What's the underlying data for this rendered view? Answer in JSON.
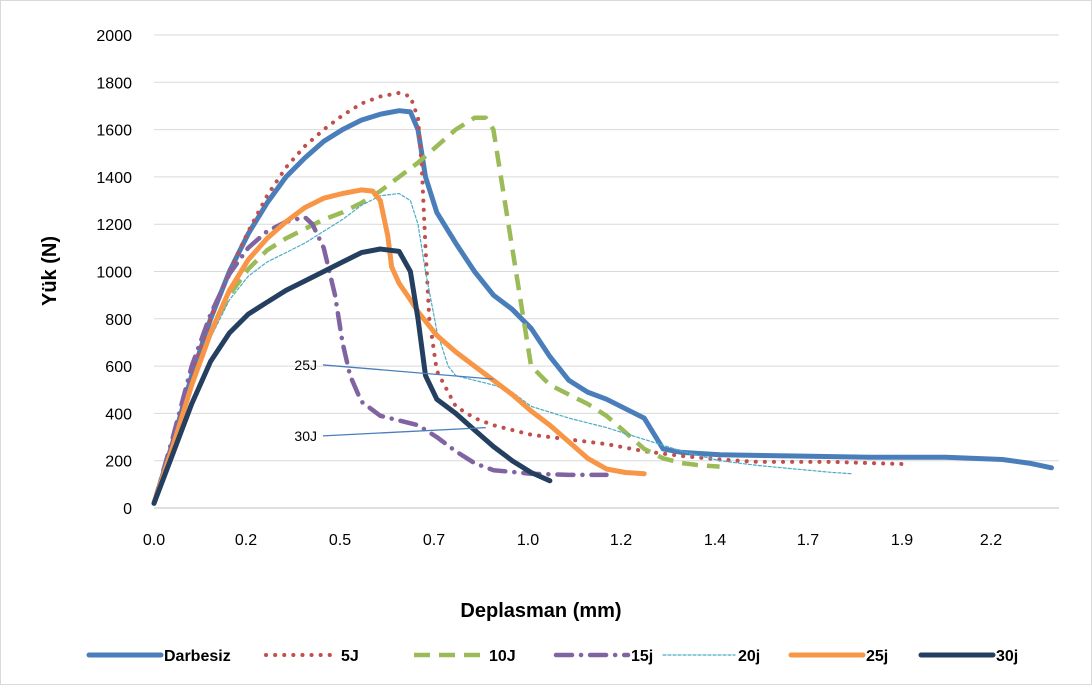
{
  "chart_data": {
    "type": "line",
    "title": "",
    "xlabel": "Deplasman (mm)",
    "ylabel": "Yük (N)",
    "xlim": [
      0,
      2.4
    ],
    "ylim": [
      0,
      2000
    ],
    "x_ticks": [
      "0.0",
      "0.2",
      "0.5",
      "0.7",
      "1.0",
      "1.2",
      "1.4",
      "1.7",
      "1.9",
      "2.2"
    ],
    "y_ticks": [
      0,
      200,
      400,
      600,
      800,
      1000,
      1200,
      1400,
      1600,
      1800,
      2000
    ],
    "grid": true,
    "legend_position": "bottom",
    "series": [
      {
        "name": "Darbesiz",
        "color": "#4a7ebb",
        "style": "solid",
        "points": [
          [
            0,
            20
          ],
          [
            0.05,
            280
          ],
          [
            0.1,
            560
          ],
          [
            0.15,
            800
          ],
          [
            0.2,
            1000
          ],
          [
            0.25,
            1160
          ],
          [
            0.3,
            1290
          ],
          [
            0.35,
            1400
          ],
          [
            0.4,
            1480
          ],
          [
            0.45,
            1550
          ],
          [
            0.5,
            1600
          ],
          [
            0.55,
            1640
          ],
          [
            0.6,
            1665
          ],
          [
            0.65,
            1680
          ],
          [
            0.68,
            1675
          ],
          [
            0.7,
            1600
          ],
          [
            0.72,
            1400
          ],
          [
            0.75,
            1250
          ],
          [
            0.8,
            1120
          ],
          [
            0.85,
            1000
          ],
          [
            0.9,
            900
          ],
          [
            0.95,
            840
          ],
          [
            1.0,
            760
          ],
          [
            1.05,
            640
          ],
          [
            1.1,
            540
          ],
          [
            1.15,
            490
          ],
          [
            1.2,
            460
          ],
          [
            1.25,
            420
          ],
          [
            1.3,
            380
          ],
          [
            1.35,
            250
          ],
          [
            1.4,
            235
          ],
          [
            1.5,
            225
          ],
          [
            1.7,
            220
          ],
          [
            1.9,
            215
          ],
          [
            2.1,
            215
          ],
          [
            2.25,
            205
          ],
          [
            2.32,
            190
          ],
          [
            2.38,
            170
          ]
        ]
      },
      {
        "name": "5J",
        "color": "#c0504d",
        "style": "dotted",
        "points": [
          [
            0,
            20
          ],
          [
            0.05,
            280
          ],
          [
            0.1,
            560
          ],
          [
            0.15,
            800
          ],
          [
            0.2,
            1000
          ],
          [
            0.25,
            1170
          ],
          [
            0.3,
            1320
          ],
          [
            0.35,
            1440
          ],
          [
            0.4,
            1530
          ],
          [
            0.45,
            1600
          ],
          [
            0.5,
            1660
          ],
          [
            0.55,
            1710
          ],
          [
            0.6,
            1740
          ],
          [
            0.65,
            1755
          ],
          [
            0.68,
            1740
          ],
          [
            0.7,
            1650
          ],
          [
            0.71,
            1450
          ],
          [
            0.72,
            1100
          ],
          [
            0.73,
            800
          ],
          [
            0.75,
            580
          ],
          [
            0.8,
            430
          ],
          [
            0.85,
            380
          ],
          [
            0.9,
            350
          ],
          [
            0.95,
            330
          ],
          [
            1.0,
            310
          ],
          [
            1.1,
            290
          ],
          [
            1.2,
            270
          ],
          [
            1.3,
            240
          ],
          [
            1.4,
            220
          ],
          [
            1.5,
            205
          ],
          [
            1.6,
            195
          ],
          [
            1.7,
            195
          ],
          [
            1.8,
            195
          ],
          [
            1.9,
            190
          ],
          [
            2.0,
            185
          ]
        ]
      },
      {
        "name": "10J",
        "color": "#9bbb59",
        "style": "dashed",
        "points": [
          [
            0,
            20
          ],
          [
            0.05,
            260
          ],
          [
            0.1,
            520
          ],
          [
            0.15,
            740
          ],
          [
            0.2,
            900
          ],
          [
            0.25,
            1010
          ],
          [
            0.3,
            1090
          ],
          [
            0.35,
            1140
          ],
          [
            0.4,
            1180
          ],
          [
            0.45,
            1220
          ],
          [
            0.5,
            1250
          ],
          [
            0.55,
            1290
          ],
          [
            0.6,
            1340
          ],
          [
            0.65,
            1400
          ],
          [
            0.7,
            1460
          ],
          [
            0.75,
            1530
          ],
          [
            0.8,
            1600
          ],
          [
            0.85,
            1650
          ],
          [
            0.88,
            1650
          ],
          [
            0.9,
            1600
          ],
          [
            0.92,
            1400
          ],
          [
            0.95,
            1100
          ],
          [
            0.98,
            800
          ],
          [
            1.0,
            600
          ],
          [
            1.05,
            520
          ],
          [
            1.1,
            480
          ],
          [
            1.15,
            440
          ],
          [
            1.2,
            390
          ],
          [
            1.25,
            320
          ],
          [
            1.3,
            250
          ],
          [
            1.35,
            210
          ],
          [
            1.4,
            190
          ],
          [
            1.45,
            180
          ],
          [
            1.5,
            175
          ]
        ]
      },
      {
        "name": "15j",
        "color": "#8064a2",
        "style": "dashdot",
        "points": [
          [
            0,
            20
          ],
          [
            0.05,
            300
          ],
          [
            0.1,
            600
          ],
          [
            0.15,
            820
          ],
          [
            0.2,
            990
          ],
          [
            0.25,
            1100
          ],
          [
            0.3,
            1170
          ],
          [
            0.35,
            1210
          ],
          [
            0.4,
            1230
          ],
          [
            0.42,
            1200
          ],
          [
            0.45,
            1100
          ],
          [
            0.48,
            900
          ],
          [
            0.5,
            700
          ],
          [
            0.52,
            560
          ],
          [
            0.55,
            450
          ],
          [
            0.6,
            390
          ],
          [
            0.65,
            370
          ],
          [
            0.7,
            350
          ],
          [
            0.75,
            300
          ],
          [
            0.8,
            240
          ],
          [
            0.85,
            190
          ],
          [
            0.9,
            160
          ],
          [
            1.0,
            145
          ],
          [
            1.1,
            140
          ],
          [
            1.2,
            140
          ]
        ]
      },
      {
        "name": "20j",
        "color": "#4bacc6",
        "style": "thin",
        "points": [
          [
            0,
            20
          ],
          [
            0.05,
            260
          ],
          [
            0.1,
            510
          ],
          [
            0.15,
            720
          ],
          [
            0.2,
            880
          ],
          [
            0.25,
            980
          ],
          [
            0.3,
            1040
          ],
          [
            0.35,
            1080
          ],
          [
            0.4,
            1120
          ],
          [
            0.45,
            1170
          ],
          [
            0.5,
            1220
          ],
          [
            0.55,
            1280
          ],
          [
            0.6,
            1320
          ],
          [
            0.65,
            1330
          ],
          [
            0.68,
            1300
          ],
          [
            0.7,
            1200
          ],
          [
            0.72,
            1000
          ],
          [
            0.75,
            750
          ],
          [
            0.78,
            600
          ],
          [
            0.8,
            560
          ],
          [
            0.85,
            540
          ],
          [
            0.9,
            520
          ],
          [
            0.95,
            490
          ],
          [
            1.0,
            430
          ],
          [
            1.1,
            380
          ],
          [
            1.2,
            340
          ],
          [
            1.3,
            290
          ],
          [
            1.4,
            240
          ],
          [
            1.5,
            200
          ],
          [
            1.6,
            180
          ],
          [
            1.7,
            165
          ],
          [
            1.8,
            150
          ],
          [
            1.85,
            145
          ]
        ]
      },
      {
        "name": "25j",
        "color": "#f79646",
        "style": "solid",
        "points": [
          [
            0,
            20
          ],
          [
            0.05,
            260
          ],
          [
            0.1,
            520
          ],
          [
            0.15,
            740
          ],
          [
            0.2,
            920
          ],
          [
            0.25,
            1050
          ],
          [
            0.3,
            1140
          ],
          [
            0.35,
            1210
          ],
          [
            0.4,
            1270
          ],
          [
            0.45,
            1310
          ],
          [
            0.5,
            1330
          ],
          [
            0.55,
            1345
          ],
          [
            0.58,
            1340
          ],
          [
            0.6,
            1300
          ],
          [
            0.62,
            1150
          ],
          [
            0.63,
            1020
          ],
          [
            0.65,
            950
          ],
          [
            0.68,
            880
          ],
          [
            0.7,
            830
          ],
          [
            0.75,
            730
          ],
          [
            0.8,
            660
          ],
          [
            0.85,
            600
          ],
          [
            0.9,
            540
          ],
          [
            0.95,
            480
          ],
          [
            1.0,
            410
          ],
          [
            1.05,
            350
          ],
          [
            1.1,
            280
          ],
          [
            1.15,
            210
          ],
          [
            1.2,
            165
          ],
          [
            1.25,
            150
          ],
          [
            1.3,
            145
          ]
        ]
      },
      {
        "name": "30j",
        "color": "#243f60",
        "style": "solid",
        "points": [
          [
            0,
            20
          ],
          [
            0.05,
            230
          ],
          [
            0.1,
            440
          ],
          [
            0.15,
            620
          ],
          [
            0.2,
            740
          ],
          [
            0.25,
            820
          ],
          [
            0.3,
            870
          ],
          [
            0.35,
            920
          ],
          [
            0.4,
            960
          ],
          [
            0.45,
            1000
          ],
          [
            0.5,
            1040
          ],
          [
            0.55,
            1080
          ],
          [
            0.6,
            1095
          ],
          [
            0.65,
            1085
          ],
          [
            0.68,
            1000
          ],
          [
            0.7,
            800
          ],
          [
            0.72,
            560
          ],
          [
            0.75,
            460
          ],
          [
            0.8,
            400
          ],
          [
            0.85,
            330
          ],
          [
            0.9,
            260
          ],
          [
            0.95,
            200
          ],
          [
            1.0,
            150
          ],
          [
            1.05,
            115
          ]
        ]
      }
    ],
    "annotations": [
      {
        "text": "25J",
        "label_at": [
          0.48,
          605
        ],
        "to": [
          0.9,
          545
        ]
      },
      {
        "text": "30J",
        "label_at": [
          0.48,
          305
        ],
        "to": [
          0.88,
          340
        ]
      }
    ]
  }
}
